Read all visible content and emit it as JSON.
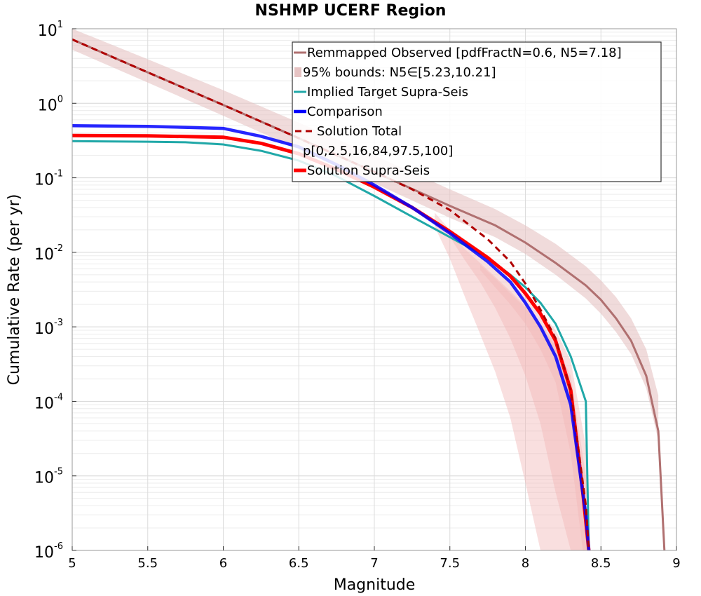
{
  "chart_data": {
    "type": "line",
    "title": "NSHMP UCERF Region",
    "xlabel": "Magnitude",
    "ylabel": "Cumulative Rate (per yr)",
    "xlim": [
      5,
      9
    ],
    "ylim_log10": [
      -6,
      1
    ],
    "yscale": "log",
    "xticks": [
      "5",
      "5.5",
      "6",
      "6.5",
      "7",
      "7.5",
      "8",
      "8.5",
      "9"
    ],
    "yticks": [
      {
        "base": "10",
        "exp": "-6"
      },
      {
        "base": "10",
        "exp": "-5"
      },
      {
        "base": "10",
        "exp": "-4"
      },
      {
        "base": "10",
        "exp": "-3"
      },
      {
        "base": "10",
        "exp": "-2"
      },
      {
        "base": "10",
        "exp": "-1"
      },
      {
        "base": "10",
        "exp": "0"
      },
      {
        "base": "10",
        "exp": "1"
      }
    ],
    "grid": true,
    "legend_position": "top-right",
    "legend": [
      "Remmapped Observed [pdfFractN=0.6, N5=7.18]",
      "95% bounds: N5∈[5.23,10.21]",
      "Implied Target Supra-Seis",
      "Comparison",
      "Solution Total",
      "p[0,2.5,16,84,97.5,100]",
      "Solution Supra-Seis"
    ],
    "colors": {
      "observed": "#b07070",
      "observed_band": "#e6c3c3",
      "target": "#20a8a8",
      "comparison": "#0000ff",
      "solution_total": "#b00000",
      "percentile_band": "#f2b8b8",
      "solution_supra": "#ff0000"
    },
    "series": [
      {
        "name": "Remmapped Observed [pdfFractN=0.6, N5=7.18]",
        "x": [
          5,
          5.5,
          6,
          6.5,
          7,
          7.5,
          7.8,
          8,
          8.2,
          8.4,
          8.5,
          8.6,
          8.7,
          8.8,
          8.88,
          8.92
        ],
        "y": [
          7.18,
          2.6,
          0.95,
          0.34,
          0.12,
          0.042,
          0.023,
          0.0135,
          0.0072,
          0.0036,
          0.0023,
          0.0013,
          0.00065,
          0.00022,
          4e-05,
          1e-06
        ]
      },
      {
        "name": "95% bounds: N5∈[5.23,10.21]",
        "x": [
          5,
          5.5,
          6,
          6.5,
          7,
          7.5,
          7.8,
          8,
          8.2,
          8.4,
          8.5,
          8.6,
          8.7,
          8.8,
          8.88
        ],
        "upper": [
          10.21,
          3.9,
          1.5,
          0.55,
          0.2,
          0.07,
          0.038,
          0.023,
          0.013,
          0.0065,
          0.0042,
          0.0025,
          0.0013,
          0.0005,
          0.00012
        ],
        "lower": [
          5.23,
          1.9,
          0.68,
          0.24,
          0.085,
          0.029,
          0.016,
          0.0095,
          0.005,
          0.0024,
          0.0015,
          0.00085,
          0.00043,
          0.00015,
          3e-05
        ]
      },
      {
        "name": "Implied Target Supra-Seis",
        "x": [
          5,
          5.5,
          5.75,
          6,
          6.25,
          6.5,
          6.75,
          7,
          7.25,
          7.5,
          7.75,
          7.9,
          8,
          8.1,
          8.2,
          8.3,
          8.4,
          8.42
        ],
        "y": [
          0.31,
          0.305,
          0.3,
          0.28,
          0.23,
          0.17,
          0.105,
          0.057,
          0.03,
          0.016,
          0.0085,
          0.005,
          0.0034,
          0.0021,
          0.0011,
          0.0004,
          0.0001,
          1e-06
        ]
      },
      {
        "name": "Comparison",
        "x": [
          5,
          5.5,
          6,
          6.25,
          6.5,
          6.75,
          7,
          7.25,
          7.5,
          7.75,
          7.9,
          8,
          8.1,
          8.2,
          8.3,
          8.4,
          8.42
        ],
        "y": [
          0.5,
          0.49,
          0.46,
          0.36,
          0.26,
          0.15,
          0.08,
          0.04,
          0.018,
          0.0075,
          0.004,
          0.0021,
          0.001,
          0.0004,
          9e-05,
          3e-06,
          1e-06
        ]
      },
      {
        "name": "Solution Total",
        "x": [
          5,
          5.5,
          6,
          6.5,
          7,
          7.25,
          7.5,
          7.75,
          7.9,
          8,
          8.1,
          8.2,
          8.3,
          8.4,
          8.42
        ],
        "y": [
          7.18,
          2.6,
          0.95,
          0.34,
          0.12,
          0.07,
          0.037,
          0.015,
          0.0075,
          0.0038,
          0.0017,
          0.0007,
          0.00014,
          4e-06,
          1e-06
        ]
      },
      {
        "name": "Solution Supra-Seis",
        "x": [
          5,
          5.5,
          6,
          6.25,
          6.5,
          6.75,
          7,
          7.25,
          7.5,
          7.75,
          7.9,
          8,
          8.1,
          8.2,
          8.3,
          8.38,
          8.42
        ],
        "y": [
          0.37,
          0.365,
          0.35,
          0.29,
          0.21,
          0.13,
          0.075,
          0.04,
          0.019,
          0.0085,
          0.0048,
          0.0028,
          0.0015,
          0.00065,
          0.00014,
          6e-06,
          1e-06
        ]
      }
    ],
    "percentile_bands": [
      {
        "x": [
          7.4,
          7.5,
          7.6,
          7.7,
          7.8,
          7.9,
          8,
          8.1,
          8.2,
          8.3,
          8.4,
          8.42
        ],
        "upper": [
          0.034,
          0.02,
          0.0125,
          0.0085,
          0.0058,
          0.0038,
          0.0026,
          0.0016,
          0.0009,
          0.00035,
          2.5e-05,
          1e-06
        ],
        "lower": [
          0.022,
          0.0082,
          0.0025,
          0.0008,
          0.00025,
          6e-05,
          8e-06,
          1e-06,
          1e-06,
          1e-06,
          1e-06,
          1e-06
        ]
      },
      {
        "x": [
          7.5,
          7.6,
          7.7,
          7.8,
          7.9,
          8,
          8.1,
          8.2,
          8.3,
          8.4,
          8.42
        ],
        "upper": [
          0.019,
          0.011,
          0.0072,
          0.0047,
          0.003,
          0.0019,
          0.0011,
          0.0006,
          0.00022,
          1e-05,
          1e-06
        ],
        "lower": [
          0.016,
          0.0078,
          0.004,
          0.0018,
          0.0007,
          0.00022,
          5e-05,
          6e-06,
          1e-06,
          1e-06,
          1e-06
        ]
      },
      {
        "x": [
          7.7,
          7.8,
          7.9,
          8,
          8.1,
          8.2,
          8.3,
          8.38,
          8.42
        ],
        "upper": [
          0.0068,
          0.0045,
          0.0028,
          0.0018,
          0.001,
          0.00055,
          0.00016,
          8e-06,
          1e-06
        ],
        "lower": [
          0.0058,
          0.0034,
          0.002,
          0.0011,
          0.0005,
          0.00018,
          2e-05,
          1e-06,
          1e-06
        ]
      }
    ]
  }
}
